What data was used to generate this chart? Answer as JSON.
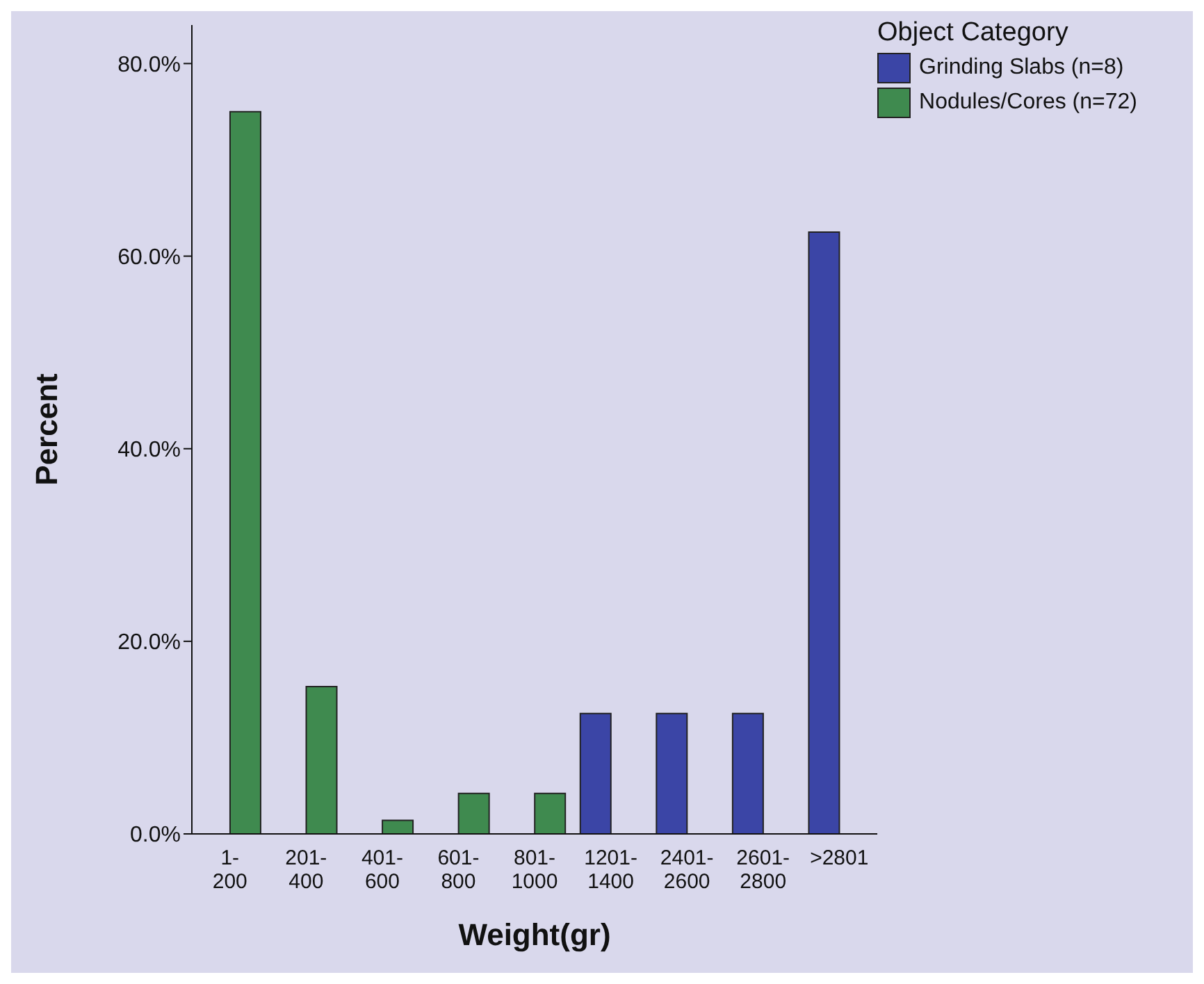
{
  "chart_data": {
    "type": "bar",
    "xlabel": "Weight(gr)",
    "ylabel": "Percent",
    "legend_title": "Object Category",
    "categories": [
      "1-200",
      "201-400",
      "401-600",
      "601-800",
      "801-1000",
      "1201-1400",
      "2401-2600",
      "2601-2800",
      ">2801"
    ],
    "series": [
      {
        "name": "Grinding Slabs (n=8)",
        "color": "#3b45a6",
        "values": [
          null,
          null,
          null,
          null,
          null,
          12.5,
          12.5,
          12.5,
          62.5
        ]
      },
      {
        "name": "Nodules/Cores (n=72)",
        "color": "#3f8a4f",
        "values": [
          75.0,
          15.3,
          1.4,
          4.2,
          4.2,
          null,
          null,
          null,
          null
        ]
      }
    ],
    "ylim": [
      0,
      84
    ],
    "yticks": [
      {
        "value": 0,
        "label": "0.0%"
      },
      {
        "value": 20,
        "label": "20.0%"
      },
      {
        "value": 40,
        "label": "40.0%"
      },
      {
        "value": 60,
        "label": "60.0%"
      },
      {
        "value": 80,
        "label": "80.0%"
      }
    ],
    "grid": false,
    "legend": "top right"
  }
}
